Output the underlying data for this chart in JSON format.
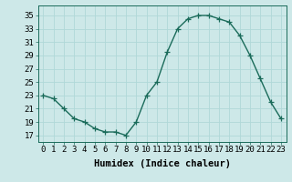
{
  "x": [
    0,
    1,
    2,
    3,
    4,
    5,
    6,
    7,
    8,
    9,
    10,
    11,
    12,
    13,
    14,
    15,
    16,
    17,
    18,
    19,
    20,
    21,
    22,
    23
  ],
  "y": [
    23,
    22.5,
    21,
    19.5,
    19,
    18,
    17.5,
    17.5,
    17,
    19,
    23,
    25,
    29.5,
    33,
    34.5,
    35,
    35,
    34.5,
    34,
    32,
    29,
    25.5,
    22,
    19.5
  ],
  "line_color": "#1a6b5a",
  "bg_color": "#cde8e8",
  "grid_color": "#b0d8d8",
  "xlabel": "Humidex (Indice chaleur)",
  "yticks": [
    17,
    19,
    21,
    23,
    25,
    27,
    29,
    31,
    33,
    35
  ],
  "xtick_labels": [
    "0",
    "1",
    "2",
    "3",
    "4",
    "5",
    "6",
    "7",
    "8",
    "9",
    "10",
    "11",
    "12",
    "13",
    "14",
    "15",
    "16",
    "17",
    "18",
    "19",
    "20",
    "21",
    "22",
    "23"
  ],
  "ylim": [
    16.0,
    36.5
  ],
  "xlim": [
    -0.5,
    23.5
  ],
  "marker": "+",
  "markersize": 4,
  "linewidth": 1.0,
  "xlabel_fontsize": 7.5,
  "tick_fontsize": 6.5
}
